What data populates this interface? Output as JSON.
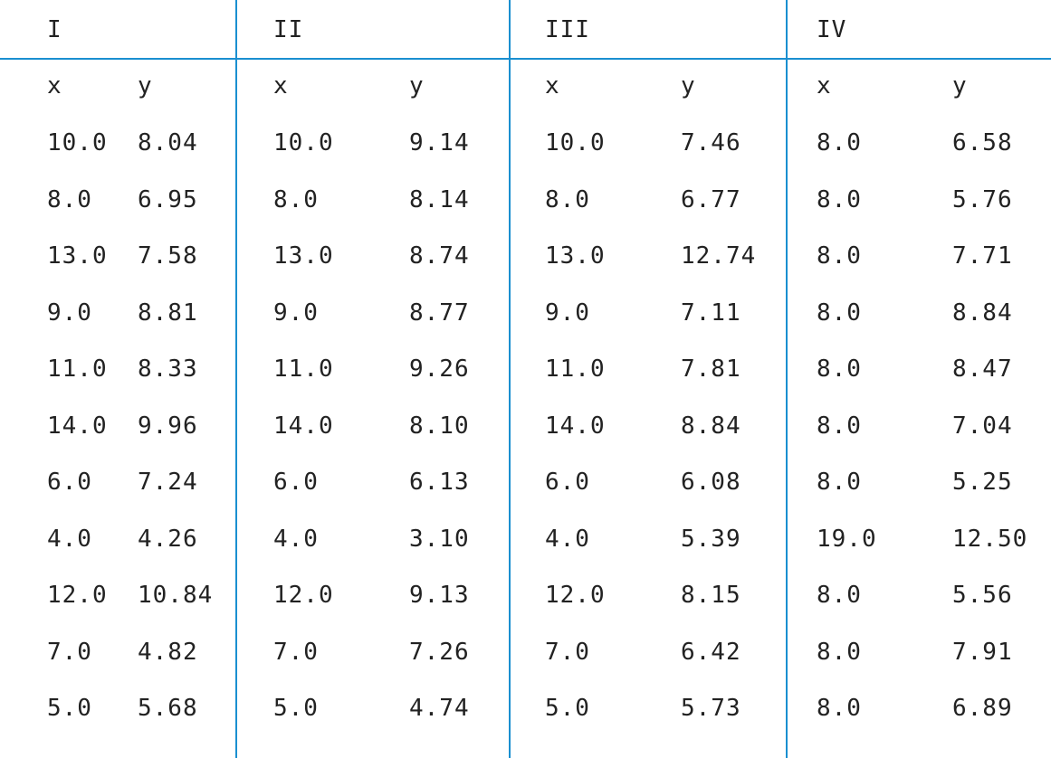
{
  "accent_color": "#1a8fd0",
  "groups": [
    {
      "label": "I",
      "x_header": "x",
      "y_header": "y",
      "rows": [
        [
          "10.0",
          "8.04"
        ],
        [
          "8.0",
          "6.95"
        ],
        [
          "13.0",
          "7.58"
        ],
        [
          "9.0",
          "8.81"
        ],
        [
          "11.0",
          "8.33"
        ],
        [
          "14.0",
          "9.96"
        ],
        [
          "6.0",
          "7.24"
        ],
        [
          "4.0",
          "4.26"
        ],
        [
          "12.0",
          "10.84"
        ],
        [
          "7.0",
          "4.82"
        ],
        [
          "5.0",
          "5.68"
        ]
      ]
    },
    {
      "label": "II",
      "x_header": "x",
      "y_header": "y",
      "rows": [
        [
          "10.0",
          "9.14"
        ],
        [
          "8.0",
          "8.14"
        ],
        [
          "13.0",
          "8.74"
        ],
        [
          "9.0",
          "8.77"
        ],
        [
          "11.0",
          "9.26"
        ],
        [
          "14.0",
          "8.10"
        ],
        [
          "6.0",
          "6.13"
        ],
        [
          "4.0",
          "3.10"
        ],
        [
          "12.0",
          "9.13"
        ],
        [
          "7.0",
          "7.26"
        ],
        [
          "5.0",
          "4.74"
        ]
      ]
    },
    {
      "label": "III",
      "x_header": "x",
      "y_header": "y",
      "rows": [
        [
          "10.0",
          "7.46"
        ],
        [
          "8.0",
          "6.77"
        ],
        [
          "13.0",
          "12.74"
        ],
        [
          "9.0",
          "7.11"
        ],
        [
          "11.0",
          "7.81"
        ],
        [
          "14.0",
          "8.84"
        ],
        [
          "6.0",
          "6.08"
        ],
        [
          "4.0",
          "5.39"
        ],
        [
          "12.0",
          "8.15"
        ],
        [
          "7.0",
          "6.42"
        ],
        [
          "5.0",
          "5.73"
        ]
      ]
    },
    {
      "label": "IV",
      "x_header": "x",
      "y_header": "y",
      "rows": [
        [
          "8.0",
          "6.58"
        ],
        [
          "8.0",
          "5.76"
        ],
        [
          "8.0",
          "7.71"
        ],
        [
          "8.0",
          "8.84"
        ],
        [
          "8.0",
          "8.47"
        ],
        [
          "8.0",
          "7.04"
        ],
        [
          "8.0",
          "5.25"
        ],
        [
          "19.0",
          "12.50"
        ],
        [
          "8.0",
          "5.56"
        ],
        [
          "8.0",
          "7.91"
        ],
        [
          "8.0",
          "6.89"
        ]
      ]
    }
  ]
}
